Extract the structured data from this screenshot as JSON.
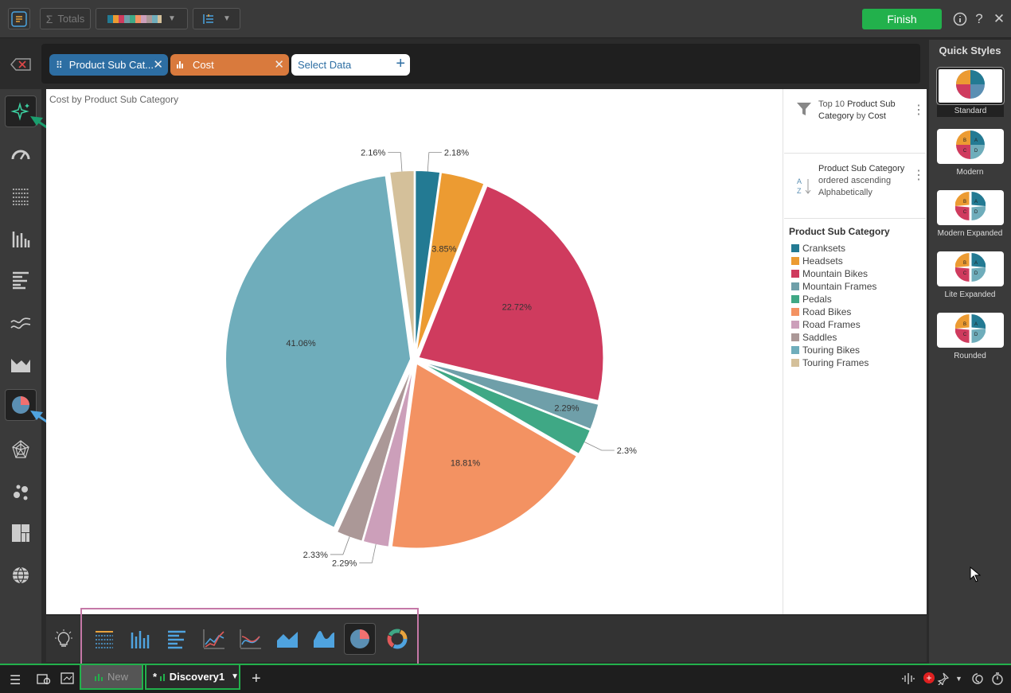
{
  "toolbar": {
    "totals_label": "Totals",
    "finish_label": "Finish"
  },
  "fields": {
    "pill1_label": "Product Sub Cat...",
    "pill2_label": "Cost",
    "select_label": "Select Data",
    "pill1_color": "#2d6ea3",
    "pill2_color": "#d97a3d"
  },
  "chart_title": "Cost by Product Sub Category",
  "filters": {
    "top_prefix": "Top 10 ",
    "top_field": "Product Sub Category",
    "top_mid": " by ",
    "top_measure": "Cost",
    "sort_field": "Product Sub Category",
    "sort_rest": " ordered ascending Alphabetically"
  },
  "legend_title": "Product Sub Category",
  "chart_data": {
    "type": "pie",
    "title": "Cost by Product Sub Category",
    "categories": [
      "Cranksets",
      "Headsets",
      "Mountain Bikes",
      "Mountain Frames",
      "Pedals",
      "Road Bikes",
      "Road Frames",
      "Saddles",
      "Touring Bikes",
      "Touring Frames"
    ],
    "values": [
      2.18,
      3.85,
      22.72,
      2.29,
      2.3,
      18.81,
      2.29,
      2.33,
      41.06,
      2.16
    ],
    "labels": [
      "2.18%",
      "3.85%",
      "22.72%",
      "2.29%",
      "2.3%",
      "18.81%",
      "2.29%",
      "2.33%",
      "41.06%",
      "2.16%"
    ],
    "colors": [
      "#237a93",
      "#ec9b32",
      "#cf3b5e",
      "#6f9fa9",
      "#3fa885",
      "#f39262",
      "#cc9fba",
      "#ab9897",
      "#6fadbb",
      "#d4c09a"
    ],
    "legend_position": "right"
  },
  "quick_styles": {
    "title": "Quick Styles",
    "items": [
      "Standard",
      "Modern",
      "Modern Expanded",
      "Lite Expanded",
      "Rounded"
    ]
  },
  "tabs": {
    "new_label": "New",
    "discovery_prefix": "*",
    "discovery_label": "Discovery1"
  }
}
